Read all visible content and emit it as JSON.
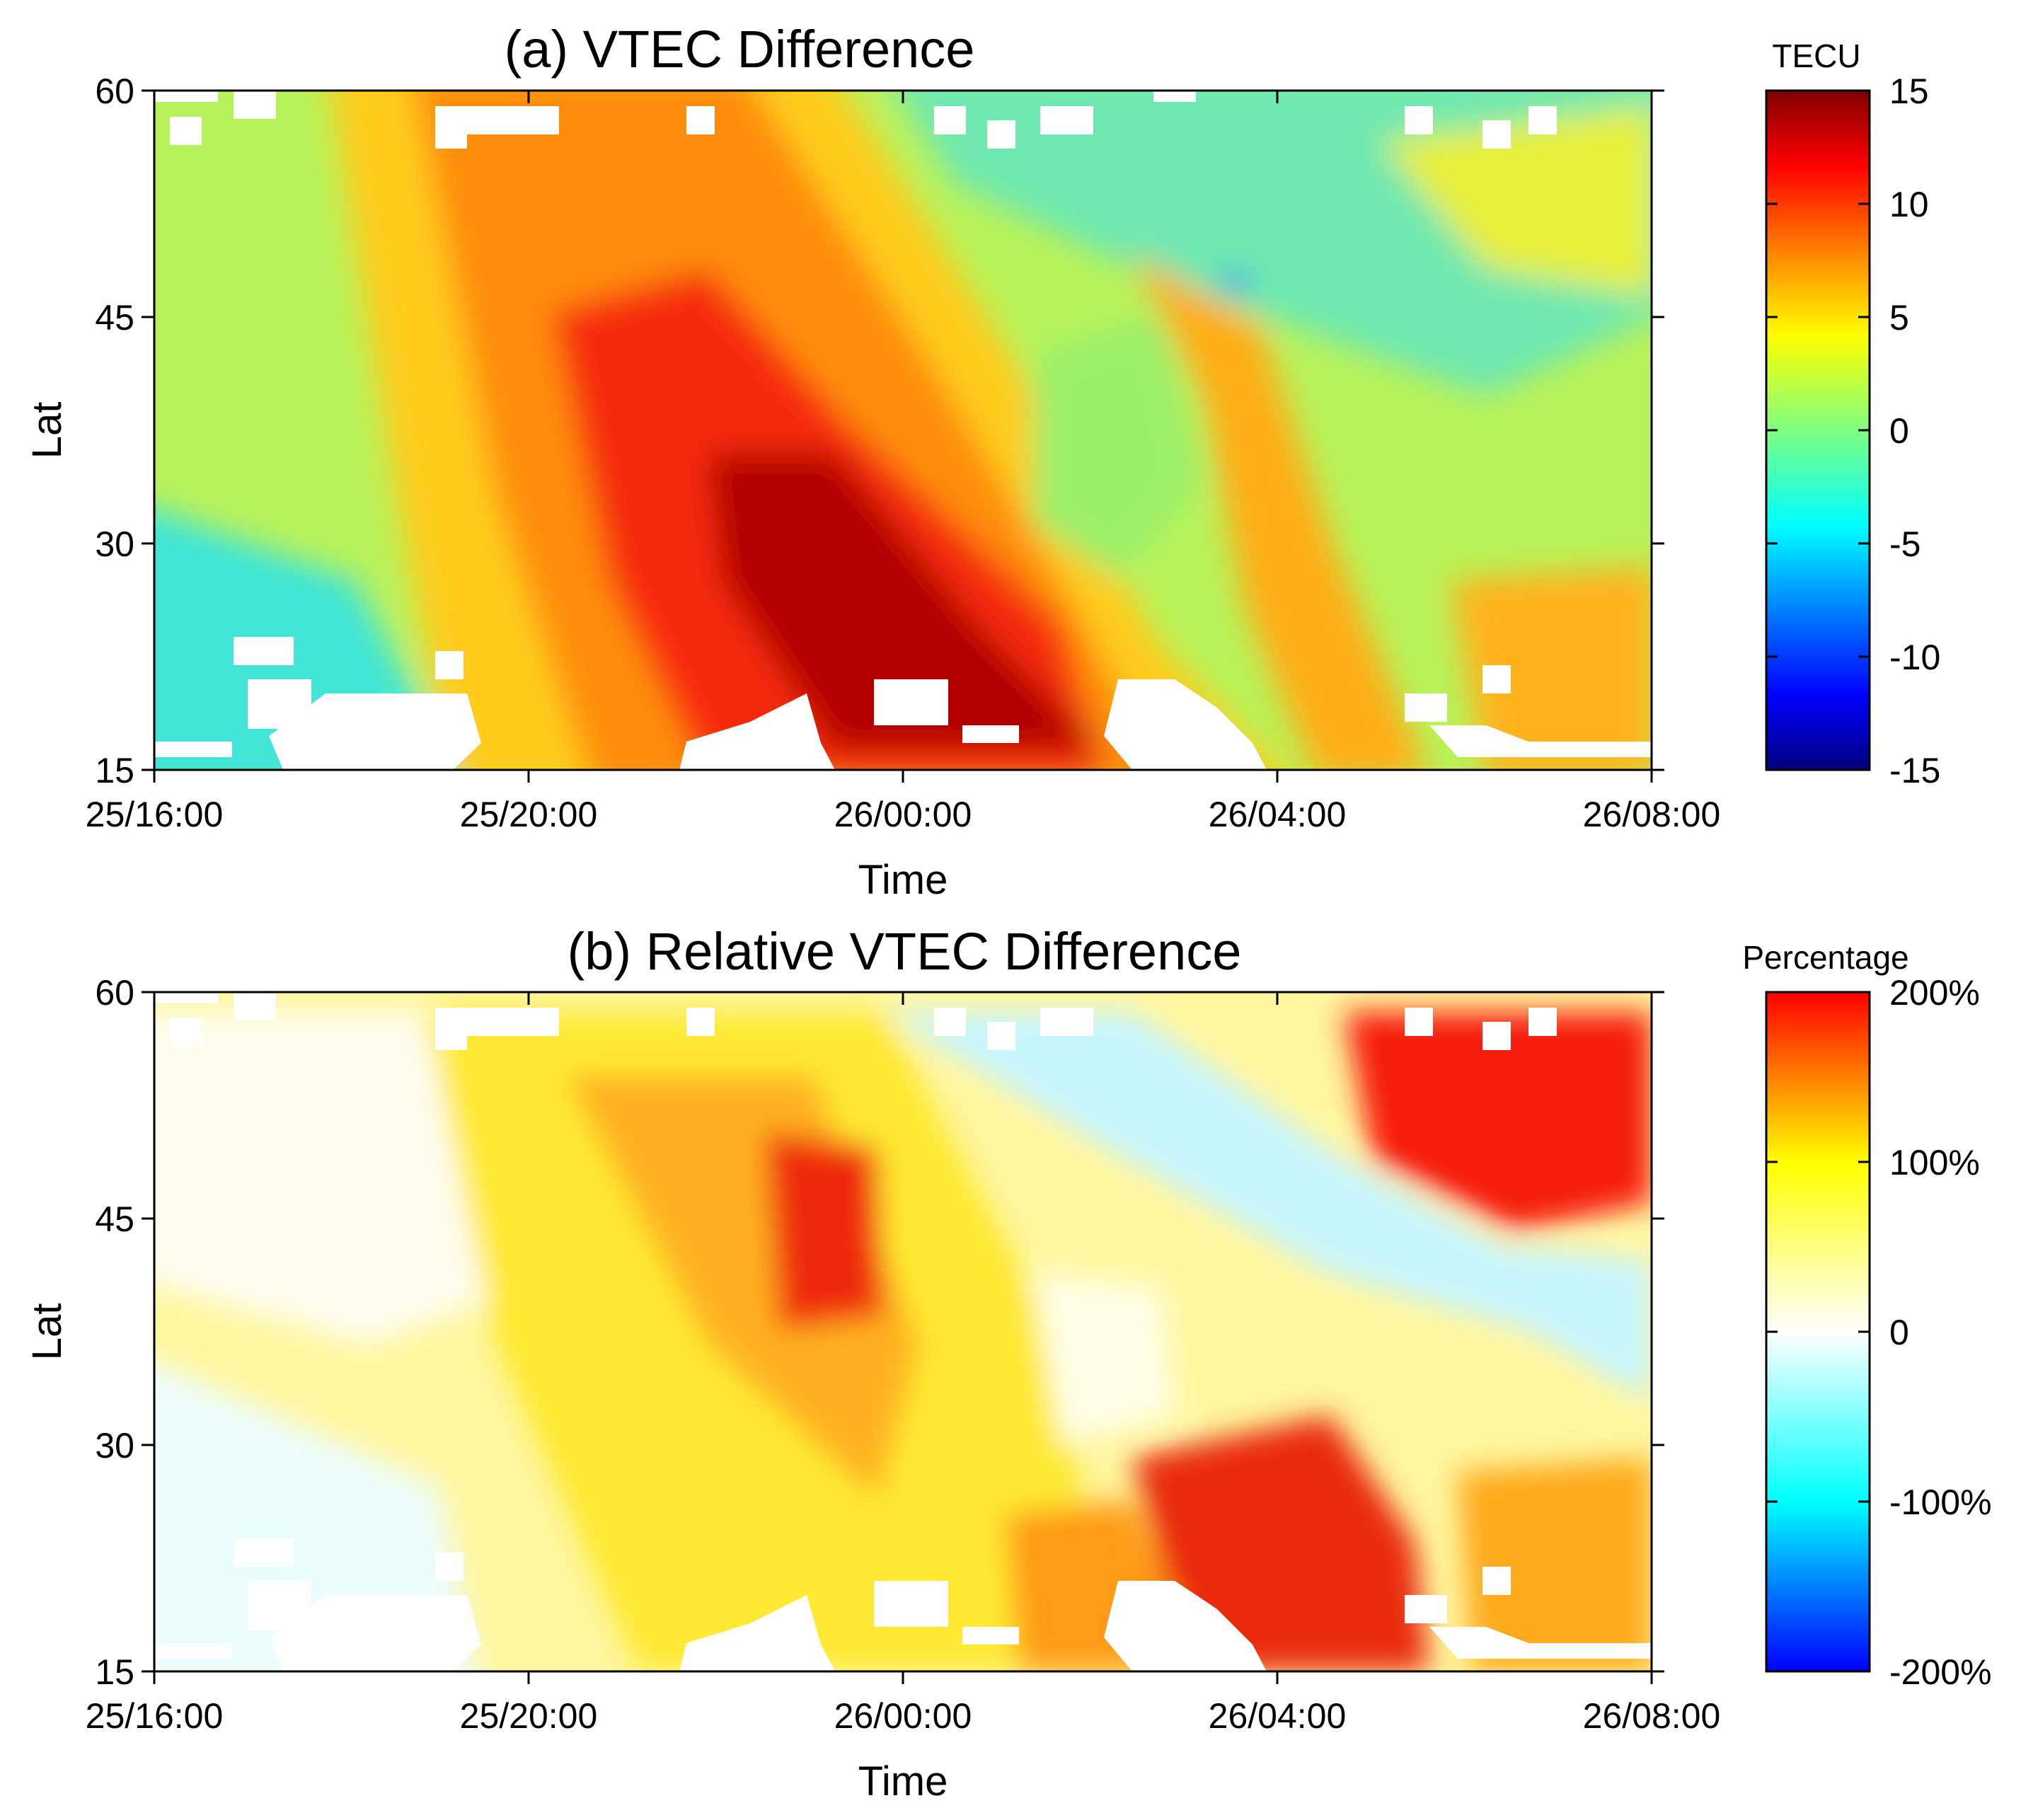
{
  "chart_data": [
    {
      "type": "heatmap",
      "title": "(a) VTEC Difference",
      "xlabel": "Time",
      "ylabel": "Lat",
      "x_ticks": [
        "25/16:00",
        "25/20:00",
        "26/00:00",
        "26/04:00",
        "26/08:00"
      ],
      "x_range_hours": [
        0,
        16
      ],
      "y_ticks": [
        15,
        30,
        45,
        60
      ],
      "ylim": [
        15,
        60
      ],
      "colorbar": {
        "title": "TECU",
        "min": -15,
        "max": 15,
        "ticks": [
          "15",
          "10",
          "5",
          "0",
          "-5",
          "-10",
          "-15"
        ],
        "colormap": "jet"
      },
      "pattern": "Positive VTEC difference band sweeping from high latitudes near 25/20:00 to low latitudes near 26/02:00; peak about 13-15 TECU near 20-30 deg around 26/00:00; near-zero values at low latitudes before 25/20:00 and at mid-high latitudes after 26/02:00; secondary enhancement of ~8 TECU at 30-45 deg around 26/03:00-26/05:00."
    },
    {
      "type": "heatmap",
      "title": "(b) Relative VTEC Difference",
      "xlabel": "Time",
      "ylabel": "Lat",
      "x_ticks": [
        "25/16:00",
        "25/20:00",
        "26/00:00",
        "26/04:00",
        "26/08:00"
      ],
      "x_range_hours": [
        0,
        16
      ],
      "y_ticks": [
        15,
        30,
        45,
        60
      ],
      "ylim": [
        15,
        60
      ],
      "colorbar": {
        "title": "Percentage",
        "min": -200,
        "max": 200,
        "ticks": [
          "200%",
          "100%",
          "0",
          "-100%",
          "-200%"
        ],
        "colormap": "blue-cyan-white-yellow-red"
      },
      "pattern": "Mostly positive relative differences of 50-150%; above 150% near 40-50 deg around 25/23:00, at low latitudes 18-25 deg around 26/03:00-26/05:00 and at high latitudes 50-60 deg after 26/05:00; slightly negative (about -50%) near 45-55 deg around 26/02:00-26/06:00 and at low latitudes before 25/18:00."
    }
  ]
}
